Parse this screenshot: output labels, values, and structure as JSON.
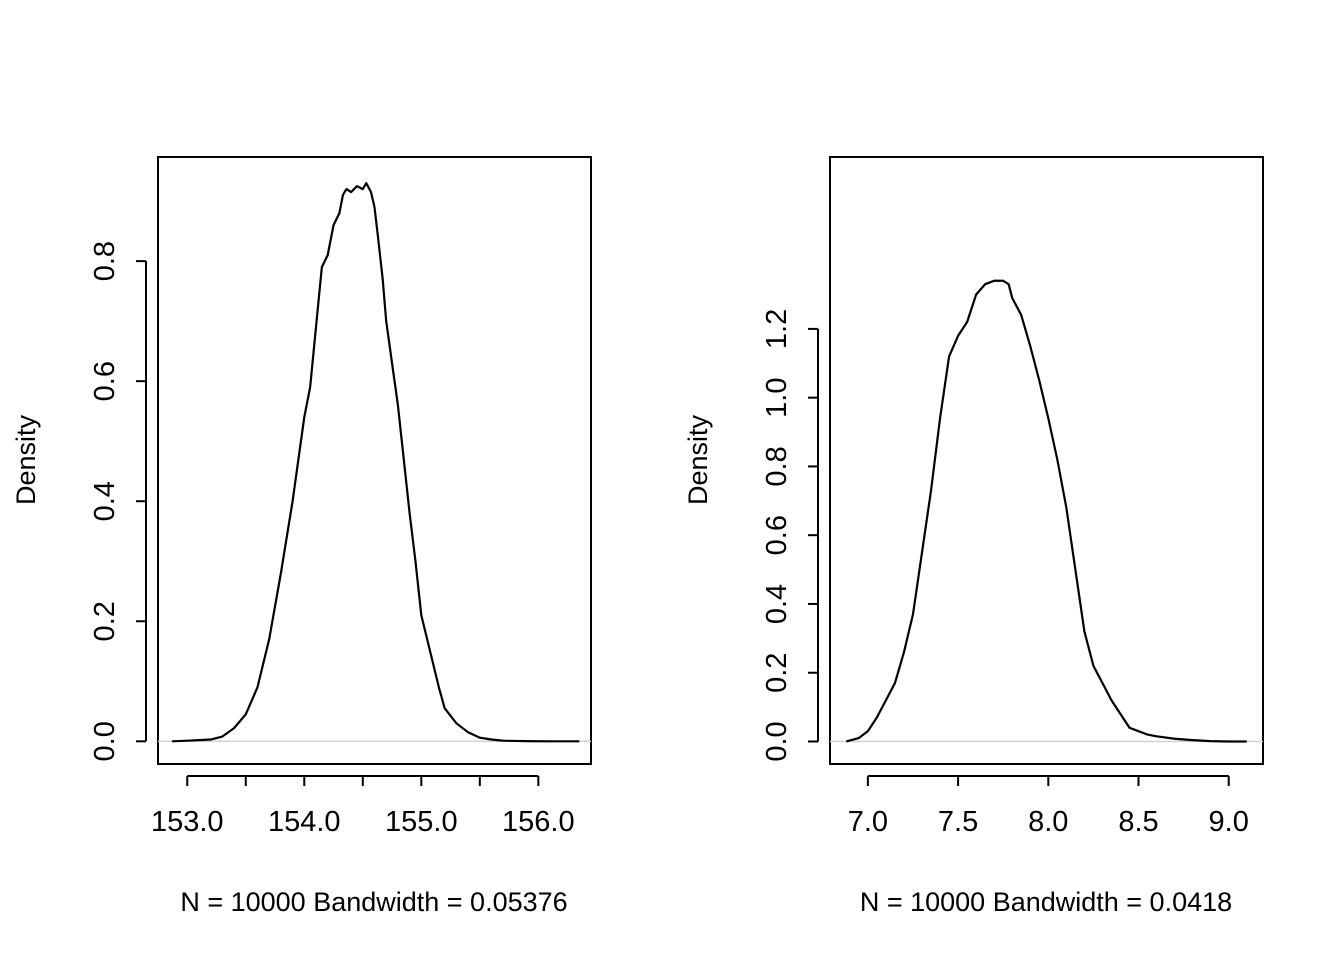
{
  "chart_data": [
    {
      "type": "line",
      "title": "",
      "xlabel": "N = 10000   Bandwidth = 0.05376",
      "ylabel": "Density",
      "xlim": [
        152.75,
        156.45
      ],
      "ylim": [
        -0.0378,
        0.9735
      ],
      "x_ticks": [
        {
          "value": 153.0,
          "label": "153.0"
        },
        {
          "value": 153.5,
          "label": ""
        },
        {
          "value": 154.0,
          "label": "154.0"
        },
        {
          "value": 154.5,
          "label": ""
        },
        {
          "value": 155.0,
          "label": "155.0"
        },
        {
          "value": 155.5,
          "label": ""
        },
        {
          "value": 156.0,
          "label": "156.0"
        }
      ],
      "y_ticks": [
        {
          "value": 0.0,
          "label": "0.0"
        },
        {
          "value": 0.2,
          "label": "0.2"
        },
        {
          "value": 0.4,
          "label": "0.4"
        },
        {
          "value": 0.6,
          "label": "0.6"
        },
        {
          "value": 0.8,
          "label": "0.8"
        }
      ],
      "zero_line": true,
      "series": [
        {
          "x": [
            152.87,
            153.0,
            153.1,
            153.2,
            153.3,
            153.4,
            153.5,
            153.6,
            153.7,
            153.8,
            153.9,
            154.0,
            154.05,
            154.1,
            154.15,
            154.2,
            154.25,
            154.3,
            154.33,
            154.36,
            154.4,
            154.45,
            154.5,
            154.53,
            154.57,
            154.6,
            154.63,
            154.67,
            154.7,
            154.75,
            154.8,
            154.85,
            154.9,
            154.95,
            155.0,
            155.05,
            155.1,
            155.15,
            155.2,
            155.3,
            155.4,
            155.5,
            155.6,
            155.65,
            155.7,
            155.8,
            155.9,
            156.0,
            156.1,
            156.2,
            156.3,
            156.35
          ],
          "y": [
            0.0,
            0.001,
            0.002,
            0.003,
            0.008,
            0.022,
            0.045,
            0.09,
            0.17,
            0.28,
            0.4,
            0.54,
            0.59,
            0.69,
            0.79,
            0.81,
            0.86,
            0.88,
            0.91,
            0.92,
            0.915,
            0.925,
            0.92,
            0.93,
            0.915,
            0.89,
            0.84,
            0.77,
            0.7,
            0.63,
            0.56,
            0.47,
            0.38,
            0.3,
            0.21,
            0.17,
            0.13,
            0.09,
            0.055,
            0.03,
            0.015,
            0.006,
            0.003,
            0.002,
            0.001,
            0.0006,
            0.0003,
            0.0001,
            0.0,
            0.0,
            0.0,
            0.0
          ]
        }
      ]
    },
    {
      "type": "line",
      "title": "",
      "xlabel": "N = 10000   Bandwidth = 0.0418",
      "ylabel": "Density",
      "xlim": [
        6.79,
        9.19
      ],
      "ylim": [
        -0.0655,
        1.7
      ],
      "x_ticks": [
        {
          "value": 7.0,
          "label": "7.0"
        },
        {
          "value": 7.5,
          "label": "7.5"
        },
        {
          "value": 8.0,
          "label": "8.0"
        },
        {
          "value": 8.5,
          "label": "8.5"
        },
        {
          "value": 9.0,
          "label": "9.0"
        }
      ],
      "y_ticks": [
        {
          "value": 0.0,
          "label": "0.0"
        },
        {
          "value": 0.2,
          "label": "0.2"
        },
        {
          "value": 0.4,
          "label": "0.4"
        },
        {
          "value": 0.6,
          "label": "0.6"
        },
        {
          "value": 0.8,
          "label": "0.8"
        },
        {
          "value": 1.0,
          "label": "1.0"
        },
        {
          "value": 1.2,
          "label": "1.2"
        }
      ],
      "zero_line": true,
      "series": [
        {
          "x": [
            6.88,
            6.95,
            7.0,
            7.05,
            7.1,
            7.15,
            7.2,
            7.25,
            7.3,
            7.35,
            7.4,
            7.45,
            7.5,
            7.55,
            7.6,
            7.65,
            7.7,
            7.73,
            7.75,
            7.78,
            7.8,
            7.85,
            7.9,
            7.95,
            8.0,
            8.05,
            8.1,
            8.15,
            8.2,
            8.25,
            8.3,
            8.35,
            8.4,
            8.45,
            8.5,
            8.55,
            8.6,
            8.7,
            8.8,
            8.9,
            9.0,
            9.1
          ],
          "y": [
            0.0,
            0.01,
            0.03,
            0.07,
            0.12,
            0.17,
            0.26,
            0.37,
            0.55,
            0.73,
            0.94,
            1.12,
            1.18,
            1.22,
            1.3,
            1.33,
            1.34,
            1.34,
            1.34,
            1.33,
            1.29,
            1.24,
            1.15,
            1.05,
            0.94,
            0.82,
            0.68,
            0.5,
            0.32,
            0.22,
            0.17,
            0.12,
            0.08,
            0.04,
            0.03,
            0.02,
            0.015,
            0.008,
            0.004,
            0.001,
            0.0,
            0.0
          ]
        }
      ]
    }
  ]
}
